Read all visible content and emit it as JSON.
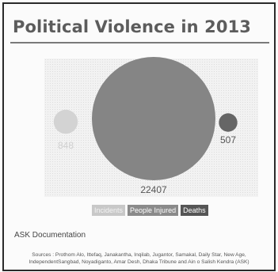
{
  "chart_data": {
    "type": "bubble",
    "title": "Political Violence in 2013",
    "series": [
      {
        "name": "Incidents",
        "value": 848,
        "color": "#d3d3d3"
      },
      {
        "name": "People Injured",
        "value": 22407,
        "color": "#858585"
      },
      {
        "name": "Deaths",
        "value": 507,
        "color": "#666666"
      }
    ],
    "data_labels": [
      "848",
      "22407",
      "507"
    ],
    "legend": [
      "Incidents",
      "People Injured",
      "Deaths"
    ],
    "legend_placement": "bottom-center",
    "grid": false
  },
  "footer": {
    "heading": "ASK Documentation",
    "sources_line1": "Sources : Prothom Alo, Ittefaq, Janakantha, Inqilab, Jugantor, Samakal, Daily Star, New Age,",
    "sources_line2": "IndependentSangbad, Noyadiganto, Amar Desh, Dhaka Tribune and Ain o Salish Kendra (ASK)"
  },
  "colors": {
    "title": "#5c5c5c",
    "frame": "#2a2a2a",
    "label": "#777777"
  }
}
